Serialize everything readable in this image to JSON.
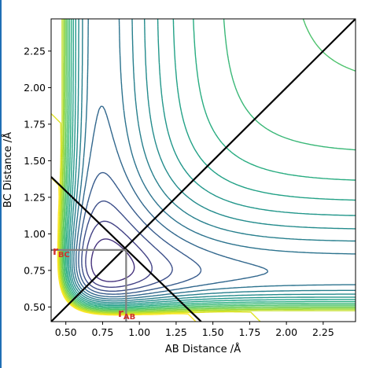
{
  "chart_data": {
    "type": "contour",
    "xlabel": "AB Distance /Å",
    "ylabel": "BC Distance /Å",
    "xlim": [
      0.4,
      2.47
    ],
    "ylim": [
      0.4,
      2.47
    ],
    "xticks": [
      "0.50",
      "0.75",
      "1.00",
      "1.25",
      "1.50",
      "1.75",
      "2.00",
      "2.25"
    ],
    "yticks": [
      "0.50",
      "0.75",
      "1.00",
      "1.25",
      "1.50",
      "1.75",
      "2.00",
      "2.25"
    ],
    "xtick_values": [
      0.5,
      0.75,
      1.0,
      1.25,
      1.5,
      1.75,
      2.0,
      2.25
    ],
    "ytick_values": [
      0.5,
      0.75,
      1.0,
      1.25,
      1.5,
      1.75,
      2.0,
      2.25
    ],
    "colormap": "viridis",
    "contour_levels": 22,
    "lines": [
      {
        "name": "diagonal",
        "x": [
          0.4,
          2.47
        ],
        "y": [
          0.4,
          2.47
        ],
        "color": "#000000"
      },
      {
        "name": "anti-diagonal",
        "x": [
          0.4,
          1.42
        ],
        "y": [
          1.39,
          0.4
        ],
        "color": "#000000"
      }
    ],
    "point": {
      "x": 0.91,
      "y": 0.89
    },
    "annotations": [
      {
        "sub": "BC",
        "main": "r",
        "at": "y-projection",
        "x": 0.4,
        "y": 0.89,
        "color": "#d0312d"
      },
      {
        "sub": "AB",
        "main": "r",
        "at": "x-projection",
        "x": 0.91,
        "y": 0.4,
        "color": "#d0312d"
      }
    ]
  }
}
